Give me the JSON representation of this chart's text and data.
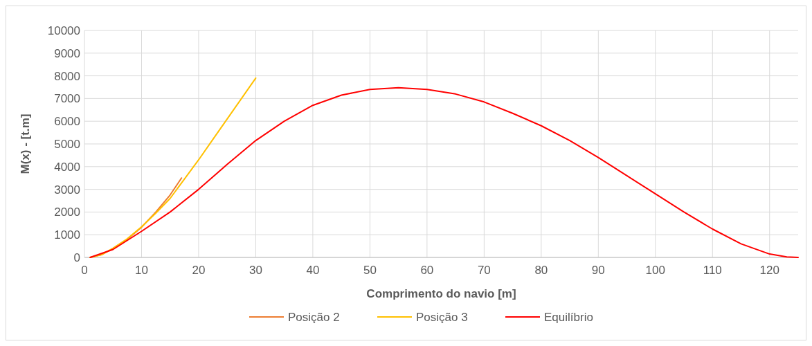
{
  "chart_data": {
    "type": "line",
    "xlabel": "Comprimento do navio [m]",
    "ylabel": "M(x) - [t.m]",
    "xlim": [
      0,
      125
    ],
    "xticks": [
      0,
      10,
      20,
      30,
      40,
      50,
      60,
      70,
      80,
      90,
      100,
      110,
      120
    ],
    "ylim": [
      0,
      10000
    ],
    "yticks": [
      0,
      1000,
      2000,
      3000,
      4000,
      5000,
      6000,
      7000,
      8000,
      9000,
      10000
    ],
    "grid": true,
    "legend": "bottom",
    "marker": "none",
    "line_style": "solid",
    "series": [
      {
        "name": "Posição 2",
        "color": "#ed7d31",
        "x": [
          1,
          3,
          5,
          7.5,
          10,
          12.5,
          15,
          17
        ],
        "values": [
          0,
          120,
          400,
          800,
          1330,
          2000,
          2750,
          3500
        ]
      },
      {
        "name": "Posição 3",
        "color": "#ffc000",
        "x": [
          1,
          3,
          5,
          7.5,
          10,
          12.5,
          15,
          17.5,
          20,
          22.5,
          25,
          27.5,
          30
        ],
        "values": [
          0,
          120,
          400,
          820,
          1350,
          1950,
          2600,
          3450,
          4300,
          5200,
          6100,
          7000,
          7900
        ]
      },
      {
        "name": "Equilíbrio",
        "color": "#ff0000",
        "x": [
          1,
          5,
          10,
          15,
          20,
          25,
          30,
          35,
          40,
          45,
          50,
          55,
          60,
          65,
          70,
          75,
          80,
          85,
          90,
          95,
          100,
          105,
          110,
          115,
          120,
          123,
          125
        ],
        "values": [
          0,
          350,
          1150,
          2000,
          3000,
          4100,
          5150,
          6000,
          6700,
          7150,
          7400,
          7480,
          7400,
          7200,
          6850,
          6350,
          5800,
          5150,
          4400,
          3600,
          2800,
          2000,
          1250,
          600,
          150,
          20,
          0
        ]
      }
    ]
  }
}
